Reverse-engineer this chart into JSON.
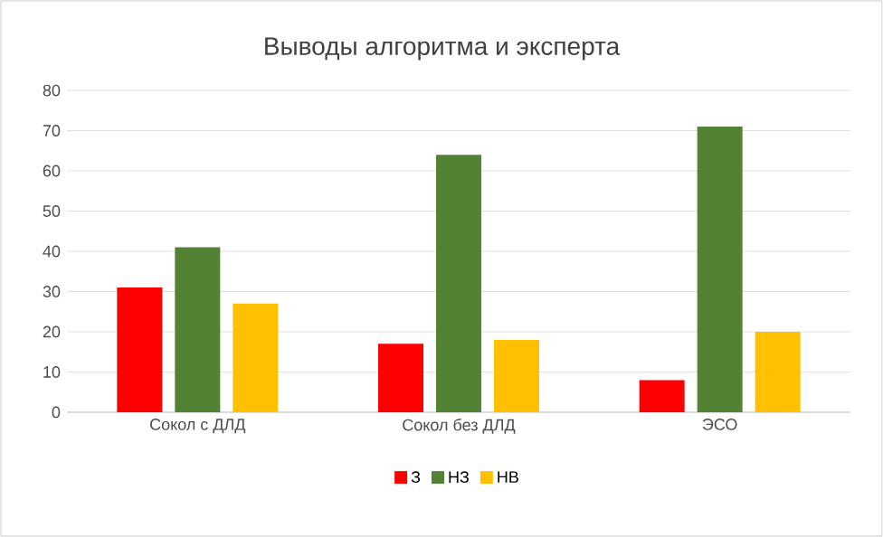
{
  "chart_data": {
    "type": "bar",
    "title": "Выводы алгоритма и эксперта",
    "categories": [
      "Сокол с ДЛД",
      "Сокол без ДЛД",
      "ЭСО"
    ],
    "series": [
      {
        "name": "З",
        "color": "#ff0000",
        "values": [
          31,
          17,
          8
        ]
      },
      {
        "name": "НЗ",
        "color": "#548235",
        "values": [
          41,
          64,
          71
        ]
      },
      {
        "name": "НВ",
        "color": "#ffc000",
        "values": [
          27,
          18,
          20
        ]
      }
    ],
    "ylim": [
      0,
      80
    ],
    "yticks": [
      0,
      10,
      20,
      30,
      40,
      50,
      60,
      70,
      80
    ],
    "grid": "y",
    "legend": "bottom"
  }
}
